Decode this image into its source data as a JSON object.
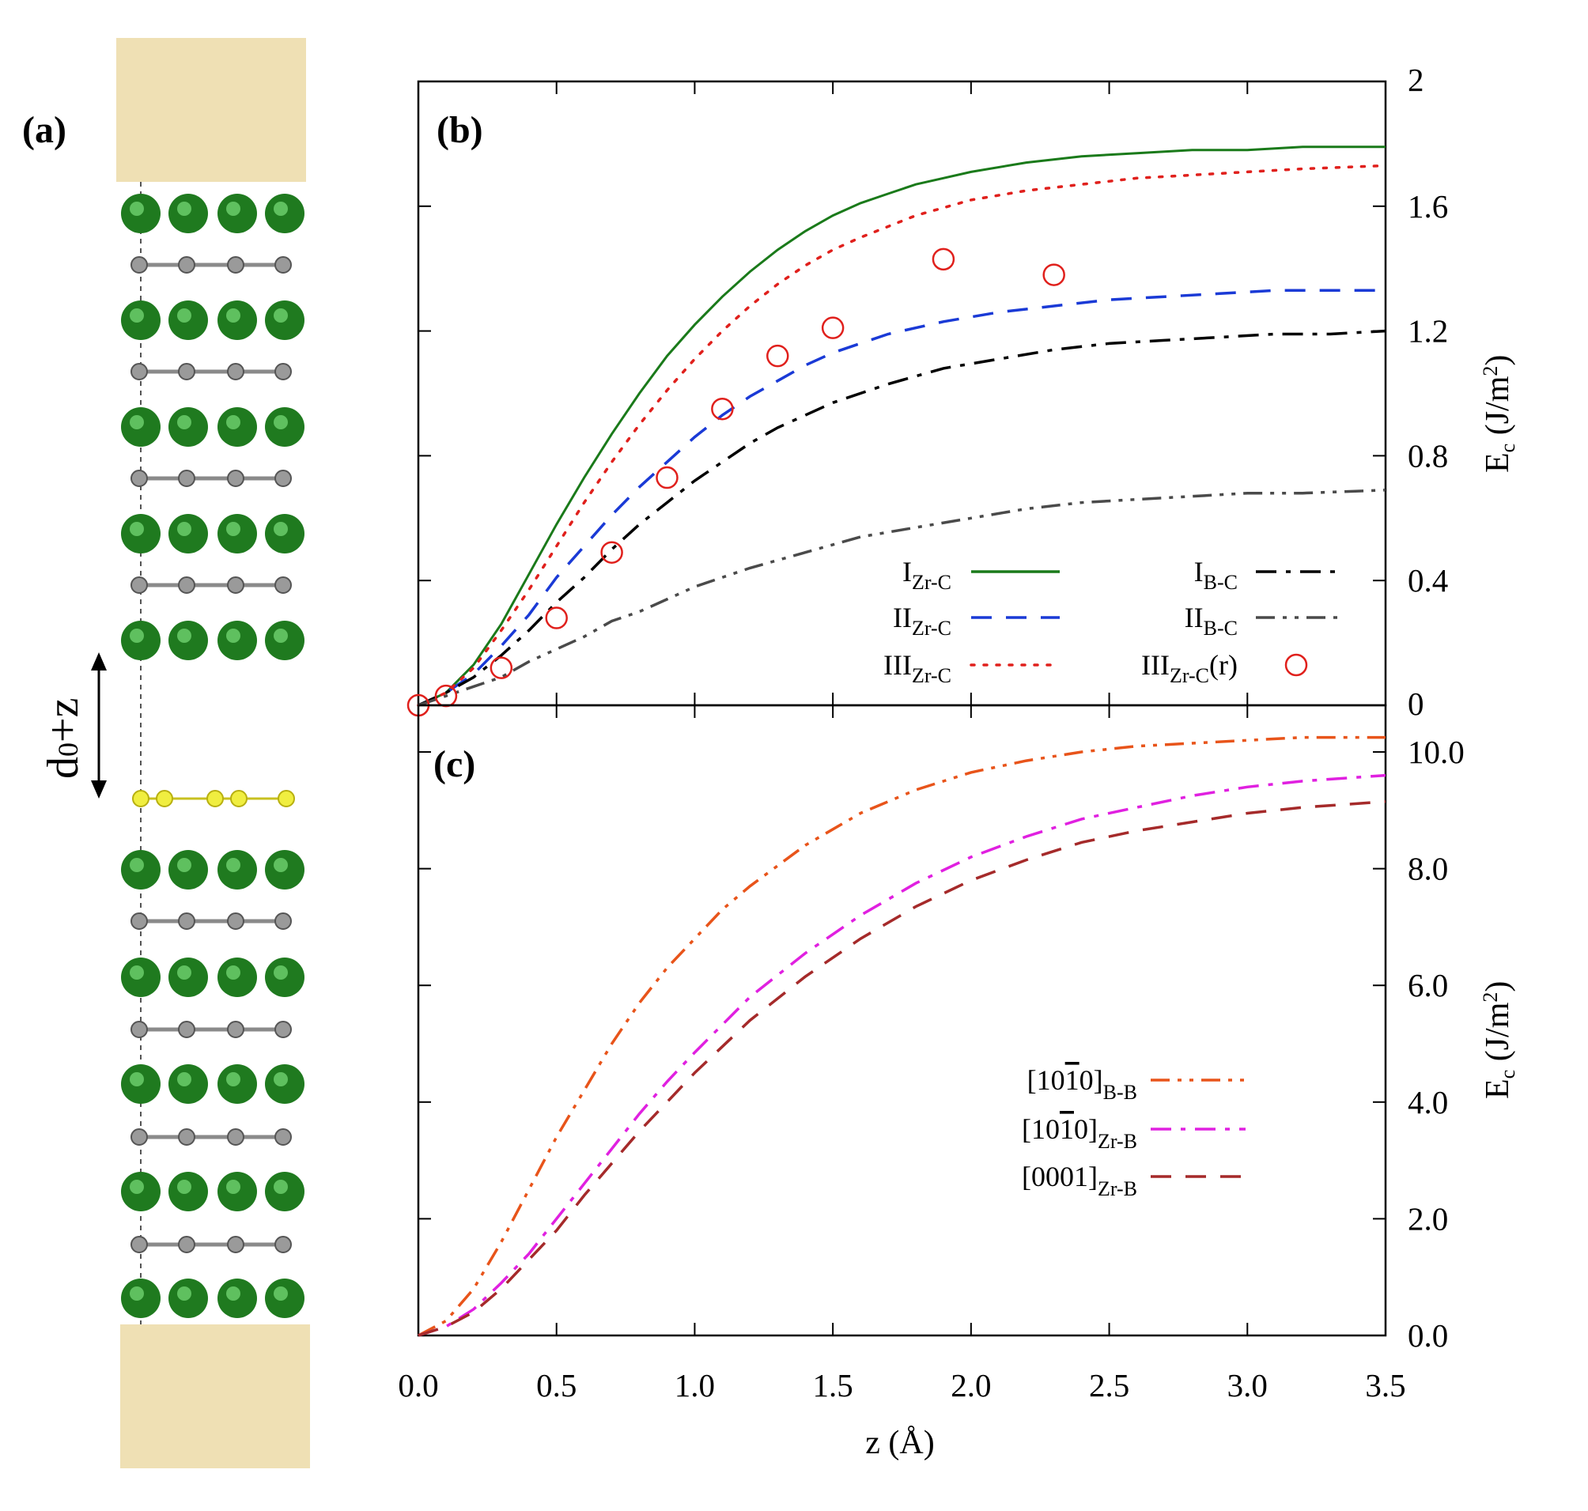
{
  "panel_a": {
    "label": "(a)",
    "distance_label_main": "d",
    "distance_label_sub": "0",
    "distance_label_rest": "+z"
  },
  "chart_data": [
    {
      "id": "b",
      "label": "(b)",
      "type": "line",
      "xlabel": "z (Å)",
      "ylabel": "E",
      "ylabel_sub": "c",
      "ylabel_unit": " (J/m",
      "ylabel_sup": "2",
      "ylabel_close": ")",
      "xlim": [
        0,
        3.5
      ],
      "ylim": [
        0,
        2
      ],
      "xticks": [
        0,
        0.5,
        1.0,
        1.5,
        2.0,
        2.5,
        3.0,
        3.5
      ],
      "yticks": [
        0,
        0.4,
        0.8,
        1.2,
        1.6,
        2
      ],
      "ytick_labels": [
        "0",
        "0.4",
        "0.8",
        "1.2",
        "1.6",
        "2"
      ],
      "series": [
        {
          "name": "I",
          "sub": "Zr-C",
          "style": "solid",
          "color": "#1a7a1a",
          "x": [
            0,
            0.1,
            0.2,
            0.3,
            0.4,
            0.5,
            0.6,
            0.7,
            0.8,
            0.9,
            1.0,
            1.1,
            1.2,
            1.3,
            1.4,
            1.5,
            1.6,
            1.7,
            1.8,
            1.9,
            2.0,
            2.2,
            2.4,
            2.6,
            2.8,
            3.0,
            3.2,
            3.5
          ],
          "y": [
            0,
            0.04,
            0.13,
            0.26,
            0.42,
            0.58,
            0.73,
            0.87,
            1.0,
            1.12,
            1.22,
            1.31,
            1.39,
            1.46,
            1.52,
            1.57,
            1.61,
            1.64,
            1.67,
            1.69,
            1.71,
            1.74,
            1.76,
            1.77,
            1.78,
            1.78,
            1.79,
            1.79
          ]
        },
        {
          "name": "II",
          "sub": "Zr-C",
          "style": "dash",
          "color": "#1a3ad6",
          "x": [
            0,
            0.1,
            0.2,
            0.3,
            0.4,
            0.5,
            0.6,
            0.7,
            0.8,
            0.9,
            1.0,
            1.1,
            1.2,
            1.3,
            1.4,
            1.5,
            1.7,
            1.9,
            2.1,
            2.3,
            2.5,
            2.7,
            2.9,
            3.1,
            3.3,
            3.5
          ],
          "y": [
            0,
            0.04,
            0.1,
            0.19,
            0.29,
            0.41,
            0.51,
            0.61,
            0.7,
            0.78,
            0.86,
            0.93,
            0.99,
            1.04,
            1.09,
            1.13,
            1.19,
            1.23,
            1.26,
            1.28,
            1.3,
            1.31,
            1.32,
            1.33,
            1.33,
            1.33
          ]
        },
        {
          "name": "III",
          "sub": "Zr-C",
          "style": "dot",
          "color": "#e0201c",
          "x": [
            0,
            0.1,
            0.2,
            0.3,
            0.4,
            0.5,
            0.6,
            0.7,
            0.8,
            0.9,
            1.0,
            1.1,
            1.2,
            1.3,
            1.4,
            1.5,
            1.6,
            1.8,
            2.0,
            2.2,
            2.4,
            2.6,
            2.8,
            3.0,
            3.2,
            3.5
          ],
          "y": [
            0,
            0.04,
            0.12,
            0.24,
            0.37,
            0.51,
            0.65,
            0.78,
            0.9,
            1.01,
            1.11,
            1.2,
            1.28,
            1.35,
            1.41,
            1.46,
            1.5,
            1.57,
            1.62,
            1.65,
            1.67,
            1.69,
            1.7,
            1.71,
            1.72,
            1.73
          ]
        },
        {
          "name": "I",
          "sub": "B-C",
          "style": "dashdot",
          "color": "#000000",
          "x": [
            0,
            0.1,
            0.2,
            0.3,
            0.4,
            0.5,
            0.6,
            0.7,
            0.8,
            0.9,
            1.0,
            1.1,
            1.2,
            1.3,
            1.4,
            1.5,
            1.7,
            1.9,
            2.1,
            2.3,
            2.5,
            2.7,
            2.9,
            3.1,
            3.3,
            3.5
          ],
          "y": [
            0,
            0.04,
            0.09,
            0.16,
            0.24,
            0.33,
            0.41,
            0.5,
            0.58,
            0.65,
            0.72,
            0.78,
            0.84,
            0.89,
            0.93,
            0.97,
            1.03,
            1.08,
            1.11,
            1.14,
            1.16,
            1.17,
            1.18,
            1.19,
            1.19,
            1.2
          ]
        },
        {
          "name": "II",
          "sub": "B-C",
          "style": "dashdotdot",
          "color": "#4a4a4a",
          "x": [
            0,
            0.1,
            0.2,
            0.3,
            0.4,
            0.5,
            0.6,
            0.7,
            0.8,
            0.9,
            1.0,
            1.2,
            1.4,
            1.6,
            1.8,
            2.0,
            2.2,
            2.4,
            2.6,
            2.8,
            3.0,
            3.2,
            3.5
          ],
          "y": [
            0,
            0.03,
            0.06,
            0.09,
            0.14,
            0.18,
            0.22,
            0.27,
            0.3,
            0.34,
            0.38,
            0.44,
            0.49,
            0.54,
            0.57,
            0.6,
            0.63,
            0.65,
            0.66,
            0.67,
            0.68,
            0.68,
            0.69
          ]
        },
        {
          "name": "III",
          "sub": "Zr-C",
          "suffix": "(r)",
          "style": "circle",
          "color": "#e0201c",
          "x": [
            0,
            0.1,
            0.3,
            0.5,
            0.7,
            0.9,
            1.1,
            1.3,
            1.5,
            1.9,
            2.3
          ],
          "y": [
            0,
            0.03,
            0.12,
            0.28,
            0.49,
            0.73,
            0.95,
            1.12,
            1.21,
            1.43,
            1.38
          ]
        }
      ]
    },
    {
      "id": "c",
      "label": "(c)",
      "type": "line",
      "xlabel": "z (Å)",
      "ylabel": "E",
      "ylabel_sub": "c",
      "ylabel_unit": " (J/m",
      "ylabel_sup": "2",
      "ylabel_close": ")",
      "xlim": [
        0,
        3.5
      ],
      "ylim": [
        0,
        10.8
      ],
      "xticks": [
        0,
        0.5,
        1.0,
        1.5,
        2.0,
        2.5,
        3.0,
        3.5
      ],
      "xtick_labels": [
        "0.0",
        "0.5",
        "1.0",
        "1.5",
        "2.0",
        "2.5",
        "3.0",
        "3.5"
      ],
      "yticks": [
        0,
        2,
        4,
        6,
        8,
        10
      ],
      "ytick_labels": [
        "0.0",
        "2.0",
        "4.0",
        "6.0",
        "8.0",
        "10.0"
      ],
      "series": [
        {
          "name": "[10ı0]",
          "sub": "B-B",
          "label_text": "[10",
          "label_bar": "1",
          "label_tail": "0]",
          "style": "dashdotdot",
          "color": "#e8541a",
          "x": [
            0,
            0.1,
            0.2,
            0.3,
            0.4,
            0.5,
            0.6,
            0.7,
            0.8,
            0.9,
            1.0,
            1.1,
            1.2,
            1.4,
            1.6,
            1.8,
            2.0,
            2.2,
            2.4,
            2.6,
            2.8,
            3.0,
            3.2,
            3.5
          ],
          "y": [
            0,
            0.25,
            0.8,
            1.6,
            2.5,
            3.4,
            4.2,
            5.0,
            5.7,
            6.3,
            6.8,
            7.3,
            7.7,
            8.4,
            8.95,
            9.35,
            9.65,
            9.85,
            10.0,
            10.1,
            10.15,
            10.2,
            10.25,
            10.25
          ]
        },
        {
          "name": "[10ı0]",
          "sub": "Zr-B",
          "label_text": "[10",
          "label_bar": "1",
          "label_tail": "0]",
          "style": "dashdot",
          "color": "#e020e0",
          "x": [
            0,
            0.1,
            0.2,
            0.3,
            0.4,
            0.5,
            0.6,
            0.7,
            0.8,
            0.9,
            1.0,
            1.2,
            1.4,
            1.6,
            1.8,
            2.0,
            2.2,
            2.4,
            2.6,
            2.8,
            3.0,
            3.2,
            3.5
          ],
          "y": [
            0,
            0.15,
            0.45,
            0.9,
            1.4,
            2.0,
            2.6,
            3.2,
            3.8,
            4.35,
            4.85,
            5.8,
            6.55,
            7.2,
            7.75,
            8.2,
            8.55,
            8.85,
            9.05,
            9.25,
            9.4,
            9.5,
            9.6
          ]
        },
        {
          "name": "[0001]",
          "sub": "Zr-B",
          "label_text": "[0001]",
          "label_bar": "",
          "label_tail": "",
          "style": "dash",
          "color": "#a52a2a",
          "x": [
            0,
            0.1,
            0.2,
            0.3,
            0.4,
            0.5,
            0.6,
            0.7,
            0.8,
            0.9,
            1.0,
            1.2,
            1.4,
            1.6,
            1.8,
            2.0,
            2.2,
            2.4,
            2.6,
            2.8,
            3.0,
            3.2,
            3.5
          ],
          "y": [
            0,
            0.15,
            0.4,
            0.8,
            1.3,
            1.8,
            2.4,
            2.95,
            3.5,
            4.0,
            4.5,
            5.4,
            6.15,
            6.8,
            7.35,
            7.8,
            8.15,
            8.45,
            8.65,
            8.8,
            8.95,
            9.05,
            9.15
          ]
        }
      ]
    }
  ]
}
